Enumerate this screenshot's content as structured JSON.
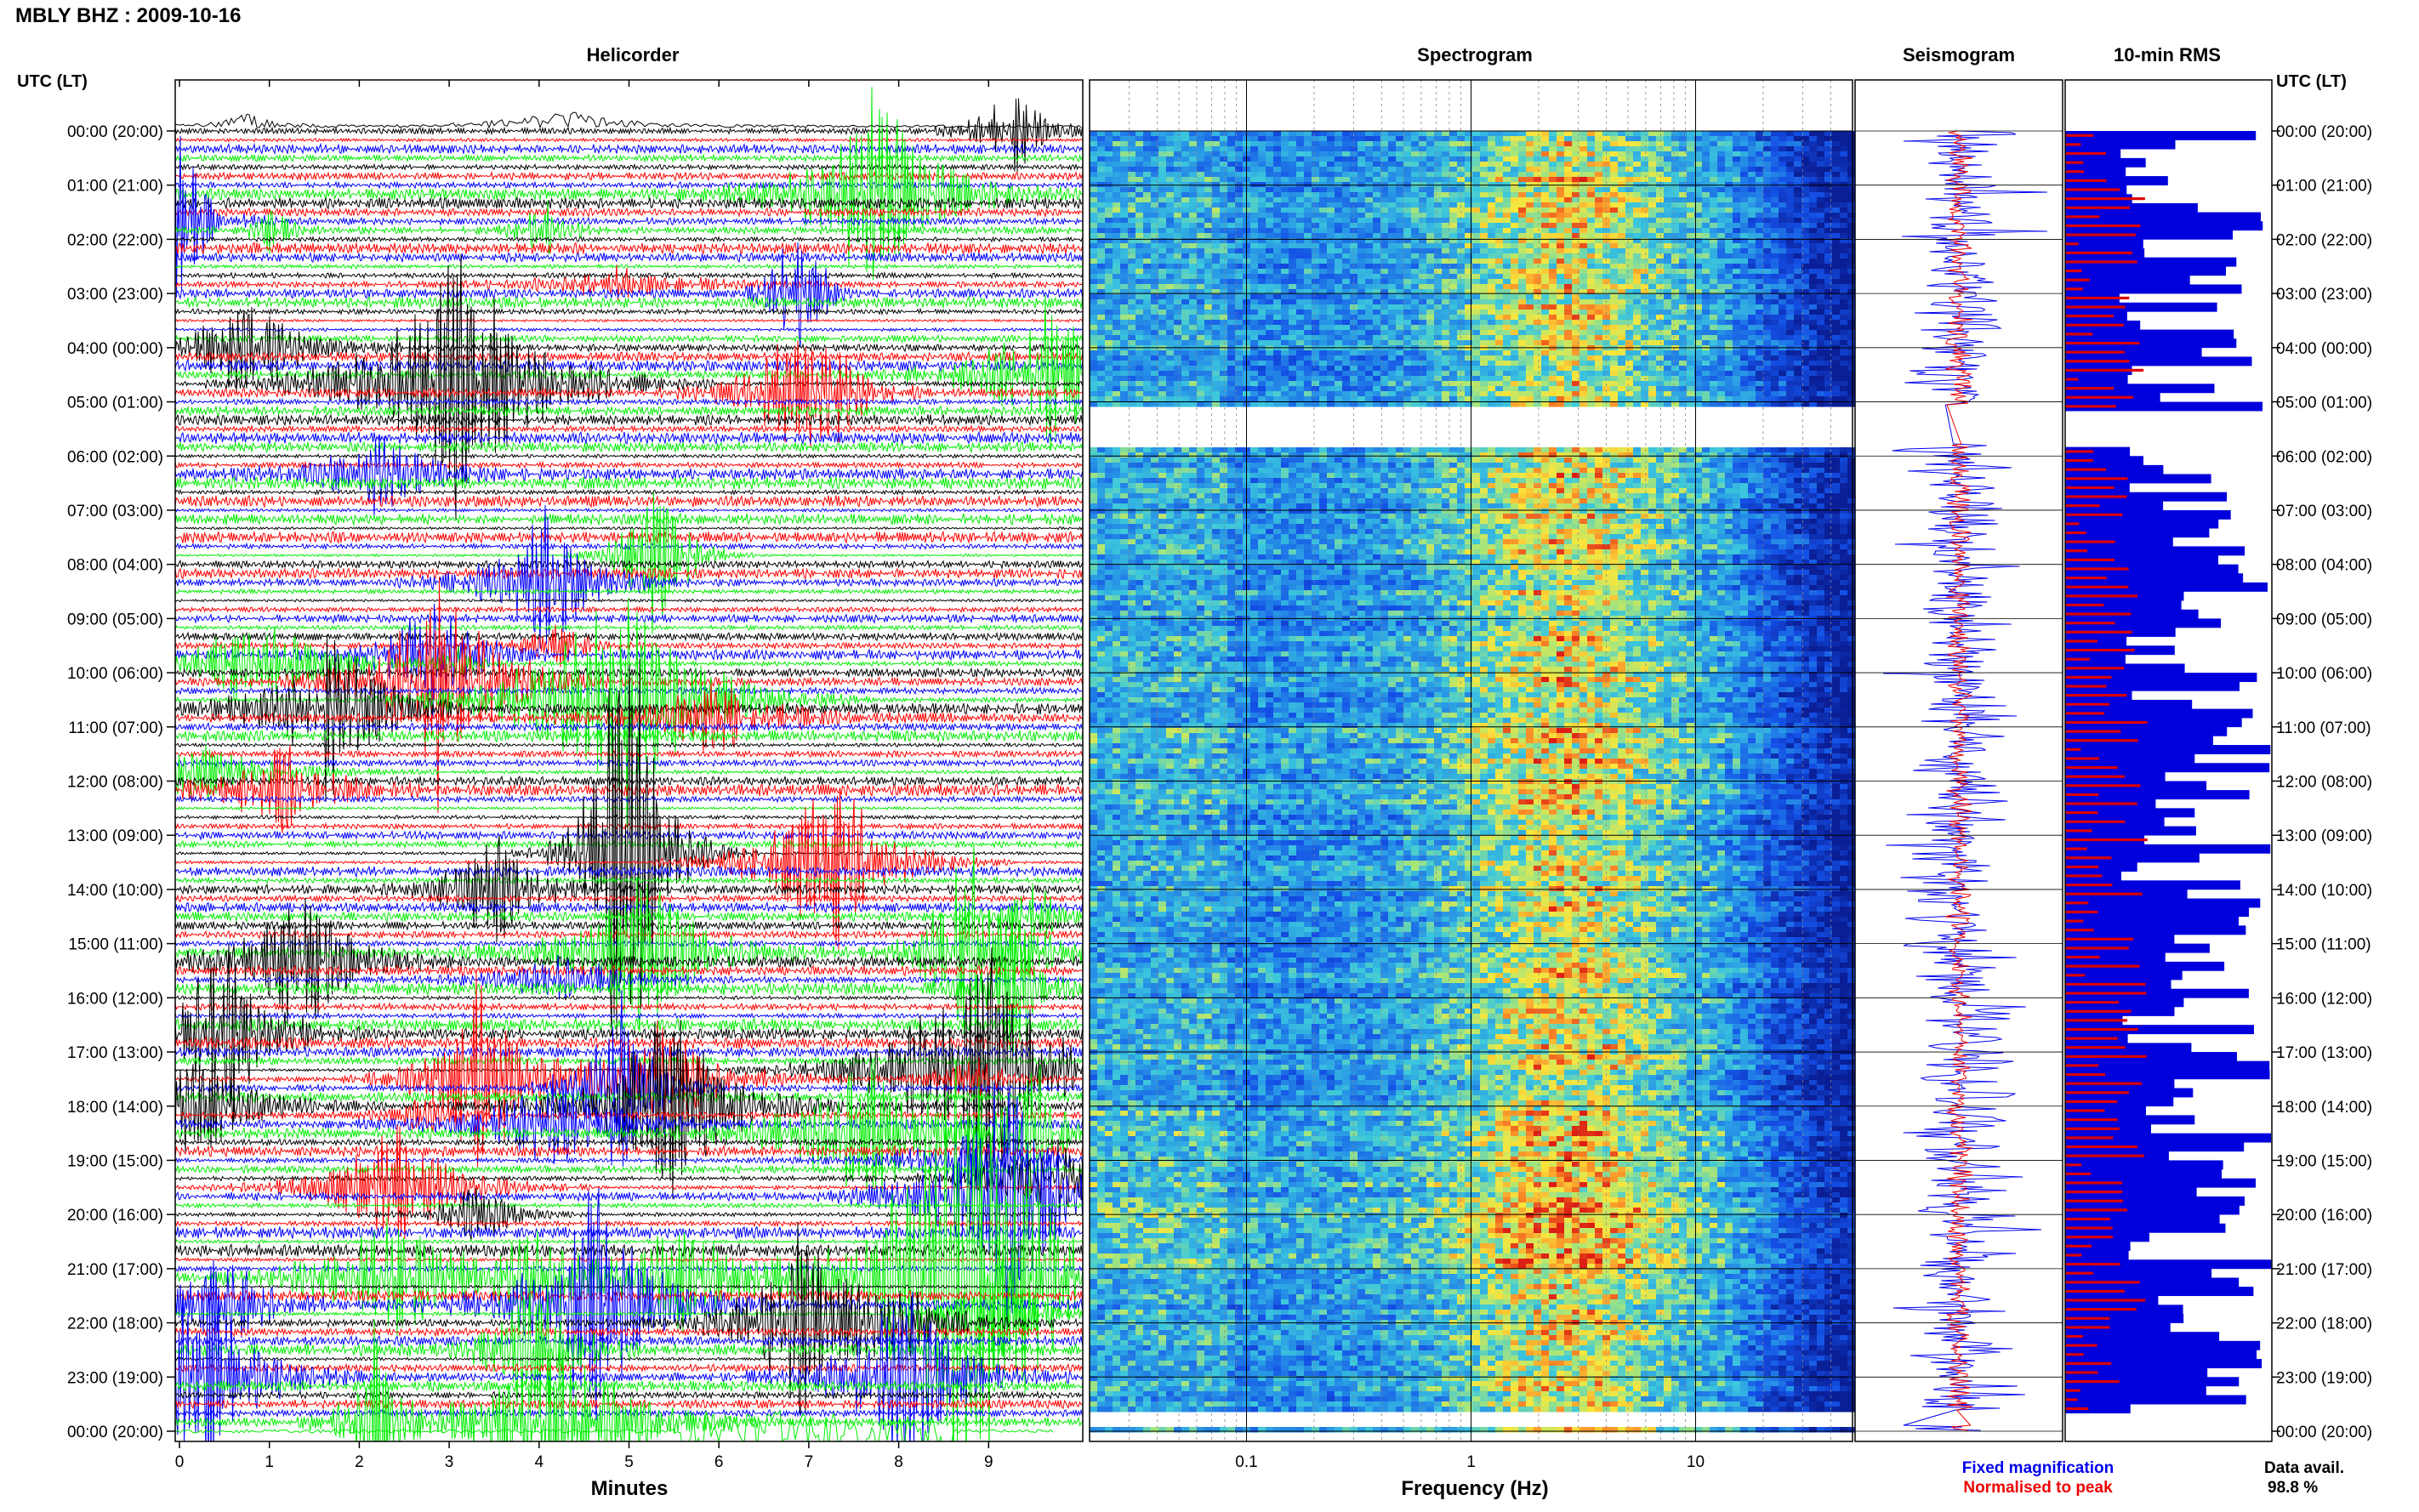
{
  "header": {
    "title": "MBLY BHZ : 2009-10-16"
  },
  "panels": {
    "helicorder": "Helicorder",
    "spectrogram": "Spectrogram",
    "seismogram": "Seismogram",
    "rms": "10-min RMS"
  },
  "axis": {
    "utc_label": "UTC (LT)"
  },
  "legend": {
    "fixed": "Fixed magnification",
    "normalised": "Normalised to peak",
    "fixed_color": "#0000ee",
    "normalised_color": "#ee0000"
  },
  "data_avail": {
    "label": "Data avail.",
    "value": "98.8 %"
  },
  "colors": {
    "trace_cycle": [
      "#000000",
      "#ff0000",
      "#0000ff",
      "#00ee00"
    ],
    "rms_fill": "#0000dd",
    "rms_normalised": "#dd0000"
  },
  "chart_data": [
    {
      "type": "line",
      "title": "Helicorder",
      "xlabel": "Minutes",
      "xlim": [
        0,
        10
      ],
      "x_ticks": [
        "0",
        "1",
        "2",
        "3",
        "4",
        "5",
        "6",
        "7",
        "8",
        "9"
      ],
      "y_ticks": [
        "00:00 (20:00)",
        "01:00 (21:00)",
        "02:00 (22:00)",
        "03:00 (23:00)",
        "04:00 (00:00)",
        "05:00 (01:00)",
        "06:00 (02:00)",
        "07:00 (03:00)",
        "08:00 (04:00)",
        "09:00 (05:00)",
        "10:00 (06:00)",
        "11:00 (07:00)",
        "12:00 (08:00)",
        "13:00 (09:00)",
        "14:00 (10:00)",
        "15:00 (11:00)",
        "16:00 (12:00)",
        "17:00 (13:00)",
        "18:00 (14:00)",
        "19:00 (15:00)",
        "20:00 (16:00)",
        "21:00 (17:00)",
        "22:00 (18:00)",
        "23:00 (19:00)",
        "00:00 (20:00)"
      ],
      "lines_per_hour": 6
    },
    {
      "type": "heatmap",
      "title": "Spectrogram",
      "xlabel": "Frequency (Hz)",
      "x_scale": "log",
      "x_ticks": [
        "0.1",
        "1",
        "10"
      ],
      "x_tick_values": [
        0.1,
        1,
        10
      ],
      "xlim": [
        0.02,
        50
      ]
    },
    {
      "type": "line",
      "title": "Seismogram"
    },
    {
      "type": "bar",
      "title": "10-min RMS",
      "orientation": "horizontal"
    }
  ]
}
